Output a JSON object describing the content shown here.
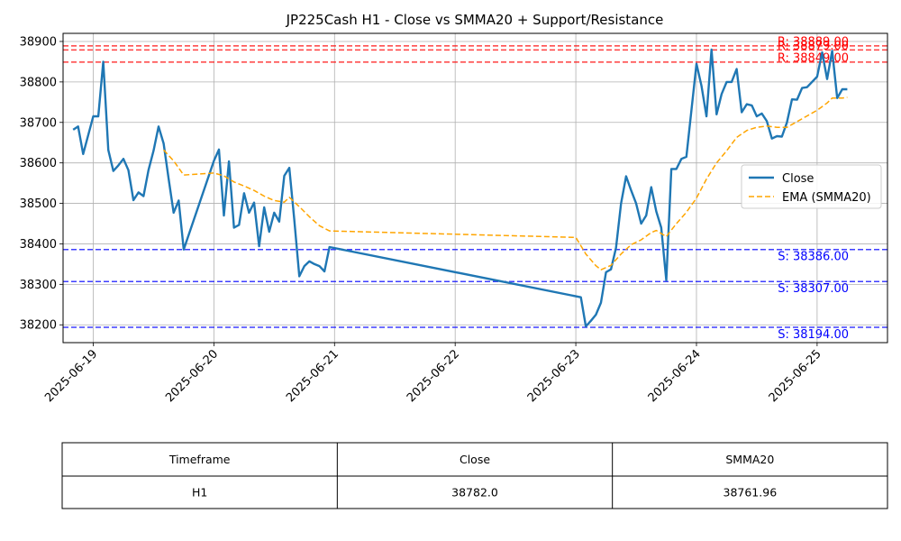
{
  "chart_data": {
    "type": "line",
    "title": "JP225Cash H1 - Close vs SMMA20 + Support/Resistance",
    "xlabel": "",
    "ylabel": "",
    "xlim": [
      "2025-06-18 18:00",
      "2025-06-25 14:00"
    ],
    "ylim": [
      38156,
      38920
    ],
    "x_ticks": [
      "2025-06-19",
      "2025-06-20",
      "2025-06-21",
      "2025-06-22",
      "2025-06-23",
      "2025-06-24",
      "2025-06-25"
    ],
    "y_ticks": [
      38200,
      38300,
      38400,
      38500,
      38600,
      38700,
      38800,
      38900
    ],
    "grid": true,
    "legend": {
      "placement": "center-right"
    },
    "colors": {
      "close": "#1f77b4",
      "smma": "#ffa500",
      "resistance": "#ff0000",
      "support": "#0000ff"
    },
    "series": [
      {
        "name": "Close",
        "style": "solid",
        "points": [
          [
            "2025-06-18 20:00",
            38682
          ],
          [
            "2025-06-18 21:00",
            38690
          ],
          [
            "2025-06-18 22:00",
            38622
          ],
          [
            "2025-06-19 00:00",
            38715
          ],
          [
            "2025-06-19 01:00",
            38715
          ],
          [
            "2025-06-19 02:00",
            38850
          ],
          [
            "2025-06-19 03:00",
            38632
          ],
          [
            "2025-06-19 04:00",
            38580
          ],
          [
            "2025-06-19 05:00",
            38594
          ],
          [
            "2025-06-19 06:00",
            38610
          ],
          [
            "2025-06-19 07:00",
            38582
          ],
          [
            "2025-06-19 08:00",
            38508
          ],
          [
            "2025-06-19 09:00",
            38527
          ],
          [
            "2025-06-19 10:00",
            38518
          ],
          [
            "2025-06-19 11:00",
            38582
          ],
          [
            "2025-06-19 12:00",
            38630
          ],
          [
            "2025-06-19 13:00",
            38690
          ],
          [
            "2025-06-19 14:00",
            38648
          ],
          [
            "2025-06-19 15:00",
            38560
          ],
          [
            "2025-06-19 16:00",
            38477
          ],
          [
            "2025-06-19 17:00",
            38507
          ],
          [
            "2025-06-19 18:00",
            38386
          ],
          [
            "2025-06-20 00:00",
            38605
          ],
          [
            "2025-06-20 01:00",
            38633
          ],
          [
            "2025-06-20 02:00",
            38470
          ],
          [
            "2025-06-20 03:00",
            38604
          ],
          [
            "2025-06-20 04:00",
            38440
          ],
          [
            "2025-06-20 05:00",
            38447
          ],
          [
            "2025-06-20 06:00",
            38525
          ],
          [
            "2025-06-20 07:00",
            38477
          ],
          [
            "2025-06-20 08:00",
            38502
          ],
          [
            "2025-06-20 09:00",
            38394
          ],
          [
            "2025-06-20 10:00",
            38490
          ],
          [
            "2025-06-20 11:00",
            38430
          ],
          [
            "2025-06-20 12:00",
            38477
          ],
          [
            "2025-06-20 13:00",
            38455
          ],
          [
            "2025-06-20 14:00",
            38568
          ],
          [
            "2025-06-20 15:00",
            38588
          ],
          [
            "2025-06-20 16:00",
            38460
          ],
          [
            "2025-06-20 17:00",
            38320
          ],
          [
            "2025-06-20 18:00",
            38345
          ],
          [
            "2025-06-20 19:00",
            38357
          ],
          [
            "2025-06-20 20:00",
            38350
          ],
          [
            "2025-06-20 21:00",
            38345
          ],
          [
            "2025-06-20 22:00",
            38332
          ],
          [
            "2025-06-20 23:00",
            38392
          ],
          [
            "2025-06-23 01:00",
            38268
          ],
          [
            "2025-06-23 02:00",
            38196
          ],
          [
            "2025-06-23 03:00",
            38210
          ],
          [
            "2025-06-23 04:00",
            38225
          ],
          [
            "2025-06-23 05:00",
            38255
          ],
          [
            "2025-06-23 06:00",
            38330
          ],
          [
            "2025-06-23 07:00",
            38337
          ],
          [
            "2025-06-23 08:00",
            38390
          ],
          [
            "2025-06-23 09:00",
            38500
          ],
          [
            "2025-06-23 10:00",
            38567
          ],
          [
            "2025-06-23 11:00",
            38532
          ],
          [
            "2025-06-23 12:00",
            38500
          ],
          [
            "2025-06-23 13:00",
            38450
          ],
          [
            "2025-06-23 14:00",
            38470
          ],
          [
            "2025-06-23 15:00",
            38540
          ],
          [
            "2025-06-23 16:00",
            38480
          ],
          [
            "2025-06-23 17:00",
            38440
          ],
          [
            "2025-06-23 18:00",
            38310
          ],
          [
            "2025-06-23 19:00",
            38585
          ],
          [
            "2025-06-23 20:00",
            38585
          ],
          [
            "2025-06-23 21:00",
            38610
          ],
          [
            "2025-06-23 22:00",
            38615
          ],
          [
            "2025-06-24 00:00",
            38845
          ],
          [
            "2025-06-24 01:00",
            38790
          ],
          [
            "2025-06-24 02:00",
            38715
          ],
          [
            "2025-06-24 03:00",
            38880
          ],
          [
            "2025-06-24 04:00",
            38720
          ],
          [
            "2025-06-24 05:00",
            38770
          ],
          [
            "2025-06-24 06:00",
            38800
          ],
          [
            "2025-06-24 07:00",
            38800
          ],
          [
            "2025-06-24 08:00",
            38832
          ],
          [
            "2025-06-24 09:00",
            38725
          ],
          [
            "2025-06-24 10:00",
            38745
          ],
          [
            "2025-06-24 11:00",
            38742
          ],
          [
            "2025-06-24 12:00",
            38715
          ],
          [
            "2025-06-24 13:00",
            38722
          ],
          [
            "2025-06-24 14:00",
            38703
          ],
          [
            "2025-06-24 15:00",
            38660
          ],
          [
            "2025-06-24 16:00",
            38666
          ],
          [
            "2025-06-24 17:00",
            38665
          ],
          [
            "2025-06-24 18:00",
            38700
          ],
          [
            "2025-06-24 19:00",
            38757
          ],
          [
            "2025-06-24 20:00",
            38756
          ],
          [
            "2025-06-24 21:00",
            38785
          ],
          [
            "2025-06-24 22:00",
            38787
          ],
          [
            "2025-06-25 00:00",
            38813
          ],
          [
            "2025-06-25 01:00",
            38873
          ],
          [
            "2025-06-25 02:00",
            38807
          ],
          [
            "2025-06-25 03:00",
            38877
          ],
          [
            "2025-06-25 04:00",
            38760
          ],
          [
            "2025-06-25 05:00",
            38782
          ],
          [
            "2025-06-25 06:00",
            38782
          ]
        ]
      },
      {
        "name": "EMA (SMMA20)",
        "style": "dashed",
        "points": [
          [
            "2025-06-19 14:00",
            38632
          ],
          [
            "2025-06-19 16:00",
            38605
          ],
          [
            "2025-06-19 18:00",
            38570
          ],
          [
            "2025-06-20 00:00",
            38575
          ],
          [
            "2025-06-20 02:00",
            38568
          ],
          [
            "2025-06-20 04:00",
            38553
          ],
          [
            "2025-06-20 06:00",
            38543
          ],
          [
            "2025-06-20 08:00",
            38532
          ],
          [
            "2025-06-20 10:00",
            38518
          ],
          [
            "2025-06-20 12:00",
            38507
          ],
          [
            "2025-06-20 14:00",
            38503
          ],
          [
            "2025-06-20 15:00",
            38515
          ],
          [
            "2025-06-20 17:00",
            38492
          ],
          [
            "2025-06-20 19:00",
            38467
          ],
          [
            "2025-06-20 21:00",
            38445
          ],
          [
            "2025-06-20 23:00",
            38432
          ],
          [
            "2025-06-23 00:00",
            38416
          ],
          [
            "2025-06-23 02:00",
            38375
          ],
          [
            "2025-06-23 04:00",
            38346
          ],
          [
            "2025-06-23 05:00",
            38336
          ],
          [
            "2025-06-23 07:00",
            38347
          ],
          [
            "2025-06-23 09:00",
            38375
          ],
          [
            "2025-06-23 11:00",
            38398
          ],
          [
            "2025-06-23 13:00",
            38410
          ],
          [
            "2025-06-23 15:00",
            38428
          ],
          [
            "2025-06-23 16:00",
            38433
          ],
          [
            "2025-06-23 18:00",
            38418
          ],
          [
            "2025-06-23 20:00",
            38450
          ],
          [
            "2025-06-23 22:00",
            38478
          ],
          [
            "2025-06-24 00:00",
            38513
          ],
          [
            "2025-06-24 02:00",
            38560
          ],
          [
            "2025-06-24 04:00",
            38600
          ],
          [
            "2025-06-24 06:00",
            38630
          ],
          [
            "2025-06-24 08:00",
            38663
          ],
          [
            "2025-06-24 10:00",
            38680
          ],
          [
            "2025-06-24 12:00",
            38688
          ],
          [
            "2025-06-24 14:00",
            38691
          ],
          [
            "2025-06-24 16:00",
            38688
          ],
          [
            "2025-06-24 18:00",
            38688
          ],
          [
            "2025-06-24 20:00",
            38702
          ],
          [
            "2025-06-24 22:00",
            38716
          ],
          [
            "2025-06-25 00:00",
            38730
          ],
          [
            "2025-06-25 02:00",
            38748
          ],
          [
            "2025-06-25 03:00",
            38760
          ],
          [
            "2025-06-25 05:00",
            38760
          ],
          [
            "2025-06-25 06:00",
            38762
          ]
        ]
      }
    ],
    "resistance": [
      {
        "value": 38889,
        "label": "R: 38889.00"
      },
      {
        "value": 38879,
        "label": "R: 38879.00"
      },
      {
        "value": 38849,
        "label": "R: 38849.00"
      }
    ],
    "support": [
      {
        "value": 38386,
        "label": "S: 38386.00"
      },
      {
        "value": 38307,
        "label": "S: 38307.00"
      },
      {
        "value": 38194,
        "label": "S: 38194.00"
      }
    ],
    "table": {
      "headers": [
        "Timeframe",
        "Close",
        "SMMA20"
      ],
      "rows": [
        [
          "H1",
          "38782.0",
          "38761.96"
        ]
      ]
    }
  }
}
